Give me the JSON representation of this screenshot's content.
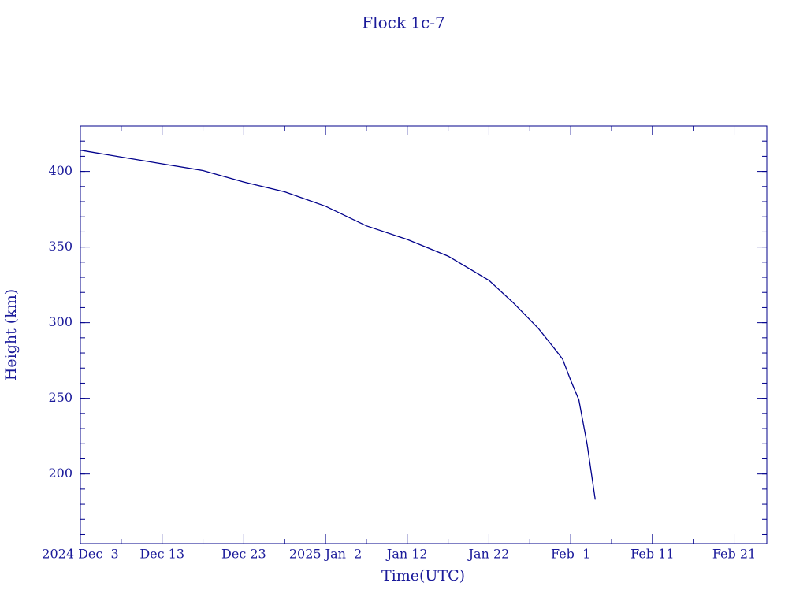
{
  "chart_data": {
    "type": "line",
    "title": "Flock 1c-7",
    "x_label": "Time(UTC)",
    "y_label": "Height (km)",
    "x": [
      "2024-12-03",
      "2024-12-08",
      "2024-12-13",
      "2024-12-18",
      "2024-12-23",
      "2024-12-28",
      "2025-01-02",
      "2025-01-07",
      "2025-01-12",
      "2025-01-17",
      "2025-01-22",
      "2025-01-25",
      "2025-01-28",
      "2025-01-30",
      "2025-01-31",
      "2025-02-01",
      "2025-02-02",
      "2025-02-03",
      "2025-02-04"
    ],
    "series": [
      {
        "name": "Height",
        "color": "#00008b",
        "values": [
          414,
          409.5,
          405,
          400.6,
          393,
          386.5,
          377,
          364,
          355,
          344,
          328,
          313,
          296.5,
          283,
          276,
          262,
          249,
          220,
          183
        ]
      }
    ],
    "xlim": [
      "2024-12-03",
      "2025-02-25"
    ],
    "xticks": [
      {
        "value": "2024-12-03",
        "label": "2024 Dec  3"
      },
      {
        "value": "2024-12-13",
        "label": "Dec 13"
      },
      {
        "value": "2024-12-23",
        "label": "Dec 23"
      },
      {
        "value": "2025-01-02",
        "label": "2025 Jan  2"
      },
      {
        "value": "2025-01-12",
        "label": "Jan 12"
      },
      {
        "value": "2025-01-22",
        "label": "Jan 22"
      },
      {
        "value": "2025-02-01",
        "label": "Feb  1"
      },
      {
        "value": "2025-02-11",
        "label": "Feb 11"
      },
      {
        "value": "2025-02-21",
        "label": "Feb 21"
      }
    ],
    "ylim": [
      154,
      430
    ],
    "yticks": [
      200,
      250,
      300,
      350,
      400
    ]
  }
}
